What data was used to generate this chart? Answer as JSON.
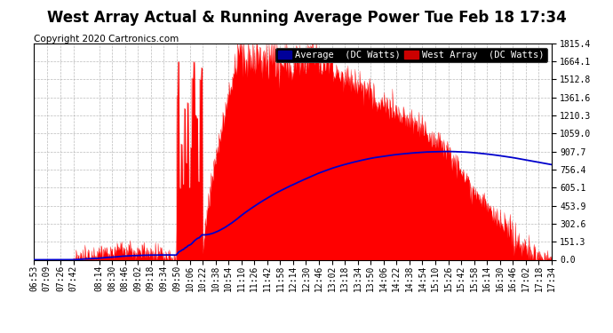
{
  "title": "West Array Actual & Running Average Power Tue Feb 18 17:34",
  "copyright": "Copyright 2020 Cartronics.com",
  "yticks": [
    0.0,
    151.3,
    302.6,
    453.9,
    605.1,
    756.4,
    907.7,
    1059.0,
    1210.3,
    1361.6,
    1512.8,
    1664.1,
    1815.4
  ],
  "ymax": 1815.4,
  "xtick_labels": [
    "06:53",
    "07:09",
    "07:26",
    "07:42",
    "08:14",
    "08:30",
    "08:46",
    "09:02",
    "09:18",
    "09:34",
    "09:50",
    "10:06",
    "10:22",
    "10:38",
    "10:54",
    "11:10",
    "11:26",
    "11:42",
    "11:58",
    "12:14",
    "12:30",
    "12:46",
    "13:02",
    "13:18",
    "13:34",
    "13:50",
    "14:06",
    "14:22",
    "14:38",
    "14:54",
    "15:10",
    "15:26",
    "15:42",
    "15:58",
    "16:14",
    "16:30",
    "16:46",
    "17:02",
    "17:18",
    "17:34"
  ],
  "fill_color": "#FF0000",
  "line_color": "#0000CC",
  "background_color": "#FFFFFF",
  "grid_color": "#AAAAAA",
  "legend_avg_bg": "#000099",
  "legend_west_bg": "#CC0000",
  "legend_avg_text": "Average  (DC Watts)",
  "legend_west_text": "West Array  (DC Watts)",
  "title_fontsize": 12,
  "copyright_fontsize": 7.5,
  "tick_fontsize": 7
}
